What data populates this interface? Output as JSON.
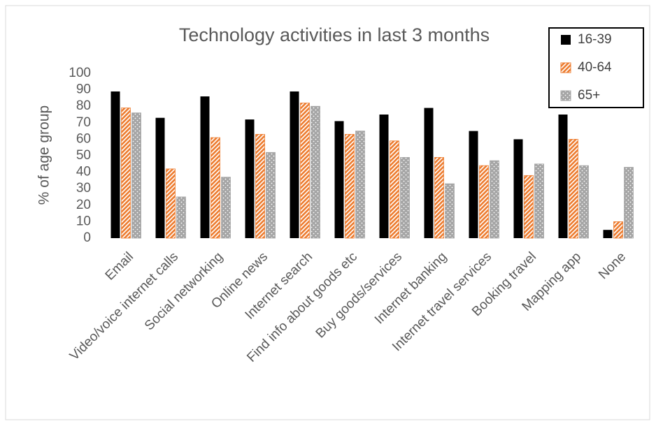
{
  "chart_data": {
    "type": "bar",
    "title": "Technology activities in last 3 months",
    "y_label": "% of age group",
    "categories": [
      "Email",
      "Video/voice internet calls",
      "Social networking",
      "Online news",
      "Internet search",
      "Find info about goods etc",
      "Buy goods/services",
      "Internet banking",
      "Internet travel services",
      "Booking travel",
      "Mapping app",
      "None"
    ],
    "series": [
      {
        "name": "16-39",
        "color": "#000000",
        "pattern": "solid",
        "values": [
          89,
          73,
          86,
          72,
          89,
          71,
          75,
          79,
          65,
          60,
          75,
          5
        ]
      },
      {
        "name": "40-64",
        "color": "#ED7D31",
        "pattern": "diagonal",
        "values": [
          79,
          42,
          61,
          63,
          82,
          63,
          59,
          49,
          44,
          38,
          60,
          10
        ]
      },
      {
        "name": "65+",
        "color": "#A5A5A5",
        "pattern": "dots",
        "values": [
          76,
          25,
          37,
          52,
          80,
          65,
          49,
          33,
          47,
          45,
          44,
          43
        ]
      }
    ],
    "ylim": [
      0,
      100
    ],
    "yticks": [
      0,
      10,
      20,
      30,
      40,
      50,
      60,
      70,
      80,
      90,
      100
    ],
    "grid": false,
    "legend": "top-right"
  }
}
